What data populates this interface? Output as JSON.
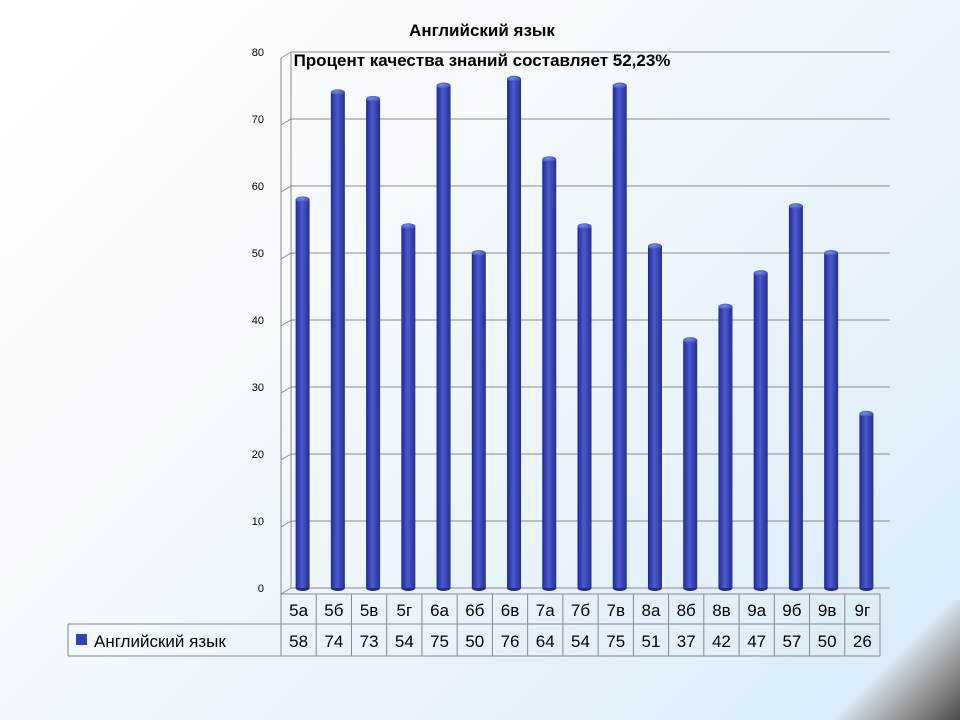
{
  "chart_data": {
    "type": "bar",
    "title": "Английский язык",
    "subtitle": "Процент качества знаний составляет 52,23%",
    "categories": [
      "5а",
      "5б",
      "5в",
      "5г",
      "6а",
      "6б",
      "6в",
      "7а",
      "7б",
      "7в",
      "8а",
      "8б",
      "8в",
      "9а",
      "9б",
      "9в",
      "9г"
    ],
    "series": [
      {
        "name": "Английский язык",
        "values": [
          58,
          74,
          73,
          54,
          75,
          50,
          76,
          64,
          54,
          75,
          51,
          37,
          42,
          47,
          57,
          50,
          26
        ],
        "color": "#3342b0"
      }
    ],
    "ylim": [
      0,
      80
    ],
    "yticks": [
      0,
      10,
      20,
      30,
      40,
      50,
      60,
      70,
      80
    ],
    "grid": true,
    "legend_position": "data-table"
  }
}
